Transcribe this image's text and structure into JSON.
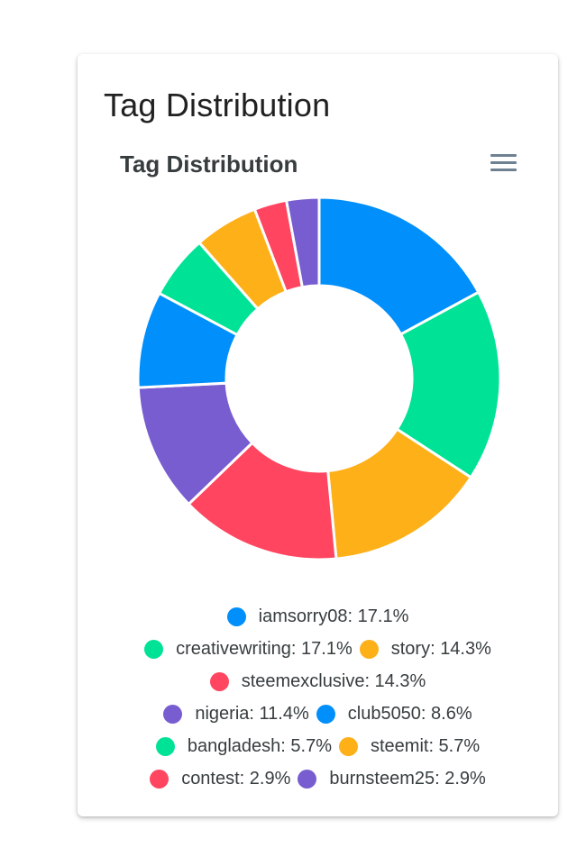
{
  "card": {
    "title": "Tag Distribution"
  },
  "chart_data": {
    "type": "pie",
    "variant": "donut",
    "title": "Tag Distribution",
    "legend_position": "bottom",
    "categories": [
      "iamsorry08",
      "creativewriting",
      "story",
      "steemexclusive",
      "nigeria",
      "club5050",
      "bangladesh",
      "steemit",
      "contest",
      "burnsteem25"
    ],
    "values": [
      17.1,
      17.1,
      14.3,
      14.3,
      11.4,
      8.6,
      5.7,
      5.7,
      2.9,
      2.9
    ],
    "legend_labels": [
      "iamsorry08: 17.1%",
      "creativewriting: 17.1%",
      "story: 14.3%",
      "steemexclusive: 14.3%",
      "nigeria: 11.4%",
      "club5050: 8.6%",
      "bangladesh: 5.7%",
      "steemit: 5.7%",
      "contest: 2.9%",
      "burnsteem25: 2.9%"
    ],
    "colors": [
      "#008ffb",
      "#00e396",
      "#feb019",
      "#ff4560",
      "#775dd0",
      "#008ffb",
      "#00e396",
      "#feb019",
      "#ff4560",
      "#775dd0"
    ]
  },
  "icons": {
    "menu": "hamburger-menu-icon"
  }
}
